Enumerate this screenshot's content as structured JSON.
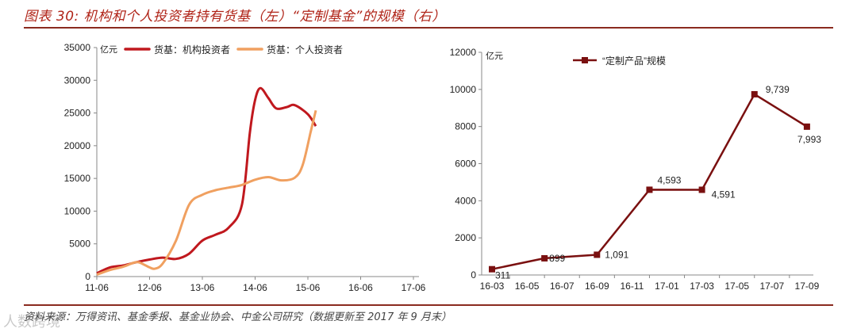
{
  "header": {
    "title": "图表 30: 机构和个人投资者持有货基（左）“定制基金”的规模（右）"
  },
  "footer": {
    "source": "资料来源：万得资讯、基金季报、基金业协会、中金公司研究（数据更新至 2017 年 9 月末）",
    "watermark": "人数跨境"
  },
  "colors": {
    "accent": "#b02418",
    "institutional": "#c0181e",
    "individual": "#f0a060",
    "custom_series": "#7a1010"
  },
  "chart_data": [
    {
      "type": "line",
      "unit": "亿元",
      "ylim": [
        0,
        35000
      ],
      "yticks": [
        "0",
        "5000",
        "10000",
        "15000",
        "20000",
        "25000",
        "30000",
        "35000"
      ],
      "xticks": [
        "11-06",
        "12-06",
        "13-06",
        "14-06",
        "15-06",
        "16-06",
        "17-06"
      ],
      "legend_position": "top",
      "grid": false,
      "series": [
        {
          "name": "货基：机构投资者",
          "color": "#c0181e",
          "points": [
            [
              0,
              500
            ],
            [
              0.25,
              1400
            ],
            [
              0.5,
              1700
            ],
            [
              0.75,
              2200
            ],
            [
              1.0,
              2600
            ],
            [
              1.25,
              2900
            ],
            [
              1.5,
              2700
            ],
            [
              1.75,
              3500
            ],
            [
              2.0,
              5500
            ],
            [
              2.25,
              6400
            ],
            [
              2.5,
              7500
            ],
            [
              2.75,
              11000
            ],
            [
              2.9,
              22000
            ],
            [
              3.0,
              27000
            ],
            [
              3.1,
              28800
            ],
            [
              3.25,
              27300
            ],
            [
              3.4,
              25700
            ],
            [
              3.6,
              25900
            ],
            [
              3.75,
              26200
            ],
            [
              4.0,
              24800
            ],
            [
              4.15,
              23000
            ]
          ]
        },
        {
          "name": "货基：个人投资者",
          "color": "#f0a060",
          "points": [
            [
              0,
              300
            ],
            [
              0.25,
              1000
            ],
            [
              0.5,
              1500
            ],
            [
              0.75,
              2200
            ],
            [
              0.9,
              1800
            ],
            [
              1.0,
              1400
            ],
            [
              1.1,
              1200
            ],
            [
              1.25,
              2000
            ],
            [
              1.5,
              5500
            ],
            [
              1.75,
              11000
            ],
            [
              2.0,
              12500
            ],
            [
              2.25,
              13200
            ],
            [
              2.5,
              13600
            ],
            [
              2.75,
              14000
            ],
            [
              3.0,
              14800
            ],
            [
              3.25,
              15200
            ],
            [
              3.5,
              14700
            ],
            [
              3.75,
              15100
            ],
            [
              3.9,
              17000
            ],
            [
              4.05,
              22000
            ],
            [
              4.15,
              25400
            ]
          ]
        }
      ]
    },
    {
      "type": "line",
      "unit": "亿元",
      "ylim": [
        0,
        12000
      ],
      "yticks": [
        "0",
        "2000",
        "4000",
        "6000",
        "8000",
        "10000",
        "12000"
      ],
      "xticks": [
        "16-03",
        "16-05",
        "16-07",
        "16-09",
        "16-11",
        "17-01",
        "17-03",
        "17-05",
        "17-07",
        "17-09"
      ],
      "legend_position": "top",
      "grid": false,
      "series": [
        {
          "name": "“定制产品”规模",
          "color": "#7a1010",
          "x": [
            "16-03",
            "16-06",
            "16-09",
            "16-12",
            "17-03",
            "17-06",
            "17-09"
          ],
          "values": [
            311,
            899,
            1091,
            4593,
            4591,
            9739,
            7993
          ],
          "labels": [
            "311",
            "899",
            "1,091",
            "4,593",
            "4,591",
            "9,739",
            "7,993"
          ]
        }
      ]
    }
  ]
}
